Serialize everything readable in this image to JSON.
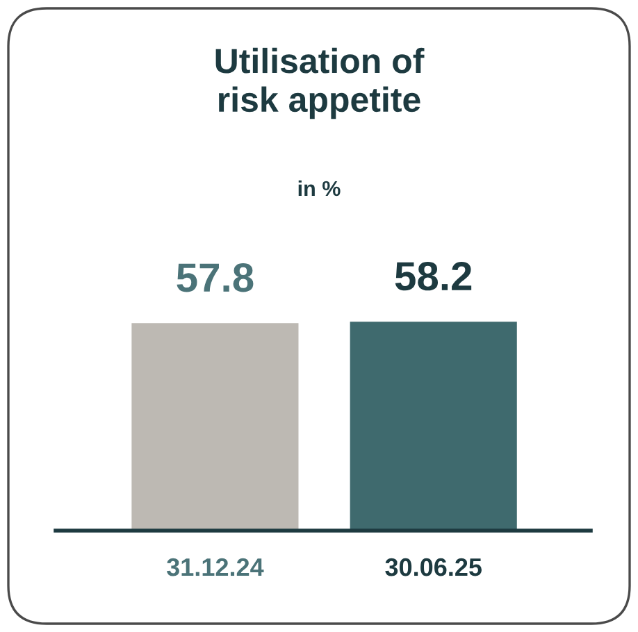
{
  "chart_data": {
    "type": "bar",
    "title": "Utilisation of\nrisk appetite",
    "subtitle": "in %",
    "categories": [
      "31.12.24",
      "30.06.25"
    ],
    "values": [
      57.8,
      58.2
    ],
    "colors": [
      "#bdb9b3",
      "#3f6a6e"
    ],
    "data_labels": true,
    "grid": false,
    "legend": false
  }
}
